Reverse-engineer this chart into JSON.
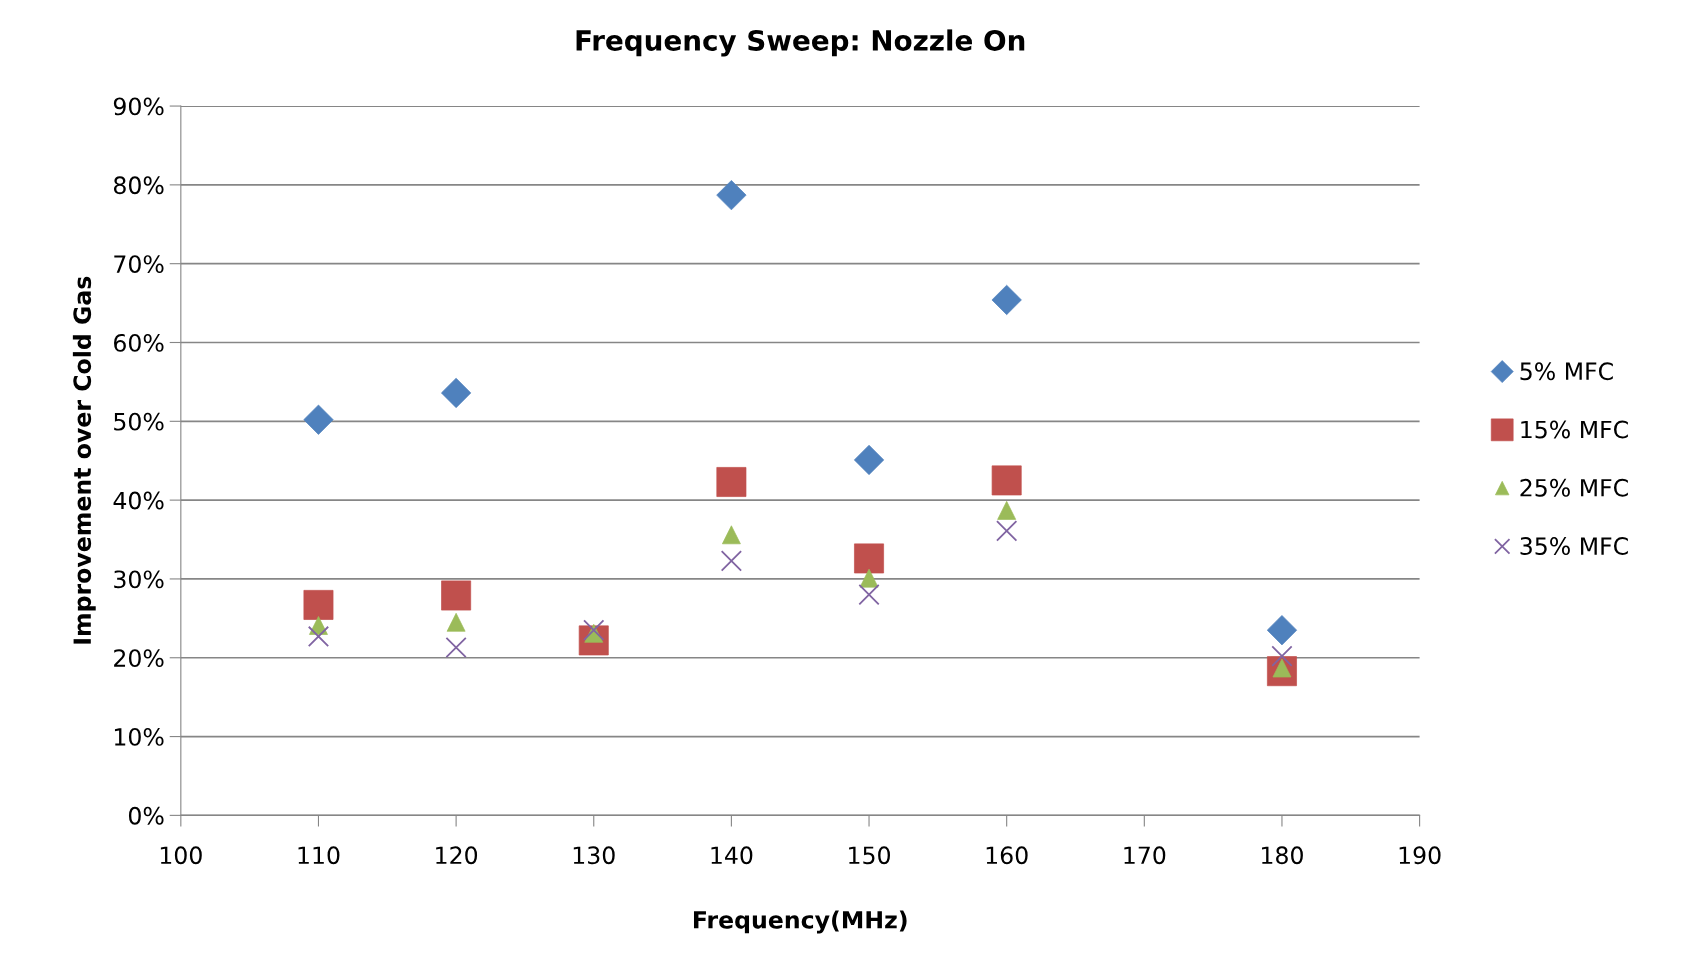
{
  "chart_data": {
    "type": "scatter",
    "title": "Frequency Sweep: Nozzle On",
    "xlabel": "Frequency(MHz)",
    "ylabel": "Improvement over Cold Gas",
    "x": [
      110,
      120,
      130,
      140,
      150,
      160,
      180
    ],
    "series": [
      {
        "name": "5% MFC",
        "color": "#4f81bd",
        "marker": "diamond",
        "x": [
          110,
          120,
          140,
          150,
          160,
          180
        ],
        "values": [
          50.2,
          53.6,
          78.7,
          45.1,
          65.4,
          23.5
        ]
      },
      {
        "name": "15% MFC",
        "color": "#c0504d",
        "marker": "square",
        "values": [
          26.7,
          27.9,
          22.2,
          42.3,
          32.6,
          42.5,
          18.3
        ]
      },
      {
        "name": "25% MFC",
        "color": "#9bbb59",
        "marker": "triangle",
        "values": [
          24.1,
          24.5,
          23.1,
          35.6,
          30.1,
          38.7,
          18.7
        ]
      },
      {
        "name": "35% MFC",
        "color": "#8064a2",
        "marker": "cross",
        "values": [
          22.7,
          21.3,
          23.5,
          32.3,
          28.0,
          36.1,
          20.2
        ]
      }
    ],
    "xlim": [
      100,
      190
    ],
    "xticks": [
      100,
      110,
      120,
      130,
      140,
      150,
      160,
      170,
      180,
      190
    ],
    "ylim": [
      0,
      90
    ],
    "yticks": [
      {
        "value": 0,
        "label": "0%"
      },
      {
        "value": 10,
        "label": "10%"
      },
      {
        "value": 20,
        "label": "20%"
      },
      {
        "value": 30,
        "label": "30%"
      },
      {
        "value": 40,
        "label": "40%"
      },
      {
        "value": 50,
        "label": "50%"
      },
      {
        "value": 60,
        "label": "60%"
      },
      {
        "value": 70,
        "label": "70%"
      },
      {
        "value": 80,
        "label": "80%"
      },
      {
        "value": 90,
        "label": "90%"
      }
    ],
    "grid": "y",
    "legend": "right"
  }
}
